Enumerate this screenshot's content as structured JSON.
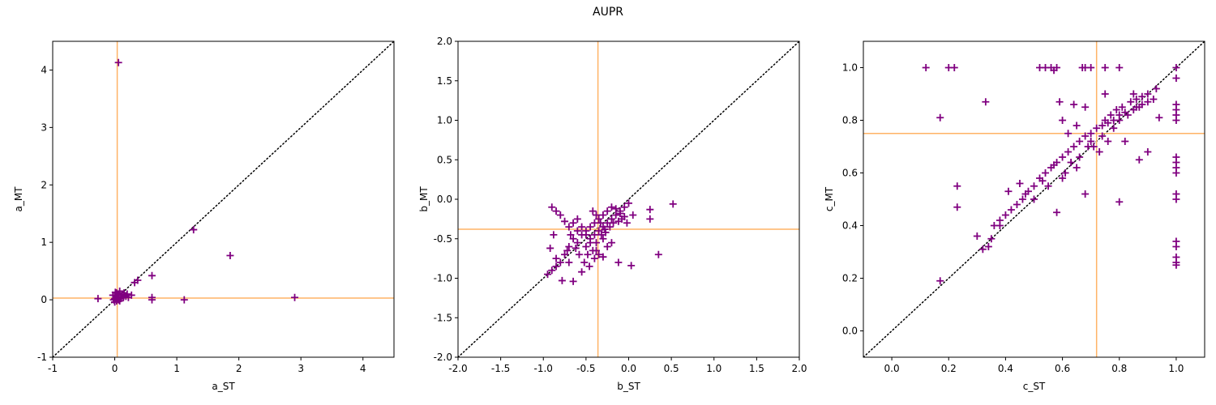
{
  "figure": {
    "title": "AUPR",
    "colors": {
      "marker": "#800080",
      "median_line": "#ffb366",
      "diagonal": "#000000"
    }
  },
  "chart_data": [
    {
      "type": "scatter",
      "title": "",
      "xlabel": "a_ST",
      "ylabel": "a_MT",
      "xlim": [
        -1,
        4.5
      ],
      "ylim": [
        -1,
        4.5
      ],
      "xticks": [
        -1,
        0,
        1,
        2,
        3,
        4
      ],
      "yticks": [
        -1,
        0,
        1,
        2,
        3,
        4
      ],
      "median_x": 0.04,
      "median_y": 0.03,
      "diagonal": true,
      "marker": "+",
      "points": [
        [
          0.06,
          4.13
        ],
        [
          1.27,
          1.22
        ],
        [
          1.86,
          0.77
        ],
        [
          2.9,
          0.04
        ],
        [
          1.12,
          0.0
        ],
        [
          0.6,
          0.42
        ],
        [
          0.6,
          0.04
        ],
        [
          0.6,
          0.0
        ],
        [
          0.37,
          0.34
        ],
        [
          0.32,
          0.3
        ],
        [
          -0.27,
          0.02
        ],
        [
          0.27,
          0.08
        ],
        [
          0.2,
          0.1
        ],
        [
          0.15,
          0.12
        ],
        [
          0.12,
          0.08
        ],
        [
          0.1,
          0.05
        ],
        [
          0.08,
          0.15
        ],
        [
          0.05,
          0.1
        ],
        [
          0.03,
          0.12
        ],
        [
          0.0,
          0.02
        ],
        [
          -0.02,
          0.0
        ],
        [
          0.0,
          -0.04
        ],
        [
          0.02,
          0.06
        ],
        [
          0.06,
          0.0
        ],
        [
          0.04,
          0.02
        ],
        [
          -0.03,
          0.08
        ],
        [
          0.1,
          0.02
        ],
        [
          0.14,
          0.04
        ],
        [
          0.08,
          -0.02
        ],
        [
          0.01,
          0.13
        ],
        [
          0.18,
          0.06
        ],
        [
          0.22,
          0.04
        ],
        [
          0.0,
          0.08
        ],
        [
          0.03,
          -0.02
        ],
        [
          0.06,
          0.09
        ]
      ]
    },
    {
      "type": "scatter",
      "title": "",
      "xlabel": "b_ST",
      "ylabel": "b_MT",
      "xlim": [
        -2,
        2
      ],
      "ylim": [
        -2,
        2
      ],
      "xticks": [
        -2.0,
        -1.5,
        -1.0,
        -0.5,
        0.0,
        0.5,
        1.0,
        1.5,
        2.0
      ],
      "yticks": [
        -2.0,
        -1.5,
        -1.0,
        -0.5,
        0.0,
        0.5,
        1.0,
        1.5,
        2.0
      ],
      "median_x": -0.36,
      "median_y": -0.38,
      "diagonal": true,
      "marker": "+",
      "points": [
        [
          0.52,
          -0.06
        ],
        [
          0.35,
          -0.7
        ],
        [
          0.25,
          -0.25
        ],
        [
          0.25,
          -0.13
        ],
        [
          0.03,
          -0.84
        ],
        [
          -0.12,
          -0.8
        ],
        [
          -0.2,
          -0.55
        ],
        [
          -0.25,
          -0.6
        ],
        [
          -0.3,
          -0.73
        ],
        [
          -0.38,
          -0.65
        ],
        [
          -0.45,
          -0.55
        ],
        [
          -0.5,
          -0.45
        ],
        [
          -0.55,
          -0.35
        ],
        [
          -0.6,
          -0.4
        ],
        [
          -0.65,
          -0.5
        ],
        [
          -0.7,
          -0.6
        ],
        [
          -0.75,
          -0.7
        ],
        [
          -0.8,
          -0.8
        ],
        [
          -0.85,
          -0.85
        ],
        [
          -0.9,
          -0.9
        ],
        [
          -0.95,
          -0.95
        ],
        [
          -0.78,
          -1.03
        ],
        [
          -0.65,
          -1.04
        ],
        [
          -0.55,
          -0.92
        ],
        [
          -0.9,
          -0.1
        ],
        [
          -0.85,
          -0.15
        ],
        [
          -0.8,
          -0.2
        ],
        [
          -0.75,
          -0.28
        ],
        [
          -0.7,
          -0.35
        ],
        [
          -0.65,
          -0.3
        ],
        [
          -0.58,
          -0.7
        ],
        [
          -0.5,
          -0.6
        ],
        [
          -0.45,
          -0.5
        ],
        [
          -0.4,
          -0.45
        ],
        [
          -0.35,
          -0.4
        ],
        [
          -0.3,
          -0.35
        ],
        [
          -0.25,
          -0.3
        ],
        [
          -0.2,
          -0.25
        ],
        [
          -0.15,
          -0.2
        ],
        [
          -0.1,
          -0.15
        ],
        [
          -0.05,
          -0.1
        ],
        [
          0.0,
          -0.05
        ],
        [
          -0.4,
          -0.3
        ],
        [
          -0.35,
          -0.25
        ],
        [
          -0.3,
          -0.2
        ],
        [
          -0.25,
          -0.15
        ],
        [
          -0.2,
          -0.1
        ],
        [
          -0.15,
          -0.12
        ],
        [
          -0.1,
          -0.18
        ],
        [
          -0.05,
          -0.22
        ],
        [
          -0.45,
          -0.35
        ],
        [
          -0.5,
          -0.4
        ],
        [
          -0.55,
          -0.45
        ],
        [
          -0.6,
          -0.55
        ],
        [
          -0.48,
          -0.7
        ],
        [
          -0.42,
          -0.65
        ],
        [
          -0.38,
          -0.55
        ],
        [
          -0.32,
          -0.45
        ],
        [
          -0.28,
          -0.38
        ],
        [
          -0.22,
          -0.35
        ],
        [
          -0.18,
          -0.3
        ],
        [
          -0.12,
          -0.28
        ],
        [
          -0.08,
          -0.25
        ],
        [
          -0.52,
          -0.8
        ],
        [
          -0.46,
          -0.85
        ],
        [
          -0.4,
          -0.75
        ],
        [
          -0.35,
          -0.7
        ],
        [
          -0.7,
          -0.8
        ],
        [
          -0.72,
          -0.65
        ],
        [
          -0.62,
          -0.62
        ],
        [
          -0.85,
          -0.75
        ],
        [
          -0.92,
          -0.62
        ],
        [
          -0.88,
          -0.45
        ],
        [
          -0.3,
          -0.5
        ],
        [
          -0.27,
          -0.42
        ],
        [
          -0.33,
          -0.3
        ],
        [
          -0.38,
          -0.2
        ],
        [
          -0.42,
          -0.15
        ],
        [
          -0.02,
          -0.3
        ],
        [
          0.05,
          -0.2
        ],
        [
          -0.6,
          -0.25
        ],
        [
          -0.68,
          -0.45
        ]
      ]
    },
    {
      "type": "scatter",
      "title": "",
      "xlabel": "c_ST",
      "ylabel": "c_MT",
      "xlim": [
        -0.1,
        1.1
      ],
      "ylim": [
        -0.1,
        1.1
      ],
      "xticks": [
        0.0,
        0.2,
        0.4,
        0.6,
        0.8,
        1.0
      ],
      "yticks": [
        0.0,
        0.2,
        0.4,
        0.6,
        0.8,
        1.0
      ],
      "median_x": 0.72,
      "median_y": 0.75,
      "diagonal": true,
      "marker": "+",
      "points": [
        [
          0.12,
          1.0
        ],
        [
          0.2,
          1.0
        ],
        [
          0.22,
          1.0
        ],
        [
          0.52,
          1.0
        ],
        [
          0.54,
          1.0
        ],
        [
          0.56,
          1.0
        ],
        [
          0.58,
          1.0
        ],
        [
          0.67,
          1.0
        ],
        [
          0.68,
          1.0
        ],
        [
          0.7,
          1.0
        ],
        [
          0.75,
          1.0
        ],
        [
          0.8,
          1.0
        ],
        [
          1.0,
          1.0
        ],
        [
          0.57,
          0.99
        ],
        [
          1.0,
          0.96
        ],
        [
          0.93,
          0.92
        ],
        [
          0.85,
          0.9
        ],
        [
          0.75,
          0.9
        ],
        [
          0.92,
          0.88
        ],
        [
          0.9,
          0.87
        ],
        [
          0.88,
          0.86
        ],
        [
          0.87,
          0.85
        ],
        [
          0.85,
          0.84
        ],
        [
          0.82,
          0.83
        ],
        [
          0.8,
          0.82
        ],
        [
          0.78,
          0.8
        ],
        [
          0.76,
          0.79
        ],
        [
          0.74,
          0.78
        ],
        [
          0.72,
          0.77
        ],
        [
          0.7,
          0.75
        ],
        [
          0.68,
          0.74
        ],
        [
          0.66,
          0.72
        ],
        [
          0.64,
          0.7
        ],
        [
          0.62,
          0.68
        ],
        [
          0.6,
          0.66
        ],
        [
          0.58,
          0.64
        ],
        [
          0.56,
          0.62
        ],
        [
          0.54,
          0.6
        ],
        [
          0.52,
          0.58
        ],
        [
          0.5,
          0.55
        ],
        [
          0.48,
          0.53
        ],
        [
          0.46,
          0.5
        ],
        [
          0.44,
          0.48
        ],
        [
          0.42,
          0.46
        ],
        [
          0.4,
          0.44
        ],
        [
          0.38,
          0.42
        ],
        [
          0.36,
          0.4
        ],
        [
          0.17,
          0.81
        ],
        [
          0.33,
          0.87
        ],
        [
          0.59,
          0.87
        ],
        [
          0.64,
          0.86
        ],
        [
          0.68,
          0.85
        ],
        [
          0.6,
          0.8
        ],
        [
          0.65,
          0.78
        ],
        [
          0.62,
          0.75
        ],
        [
          1.0,
          0.86
        ],
        [
          1.0,
          0.84
        ],
        [
          1.0,
          0.82
        ],
        [
          1.0,
          0.8
        ],
        [
          0.94,
          0.81
        ],
        [
          0.82,
          0.72
        ],
        [
          0.9,
          0.68
        ],
        [
          0.87,
          0.65
        ],
        [
          1.0,
          0.66
        ],
        [
          1.0,
          0.64
        ],
        [
          1.0,
          0.62
        ],
        [
          1.0,
          0.6
        ],
        [
          0.58,
          0.45
        ],
        [
          0.68,
          0.52
        ],
        [
          0.8,
          0.49
        ],
        [
          1.0,
          0.52
        ],
        [
          1.0,
          0.5
        ],
        [
          1.0,
          0.34
        ],
        [
          1.0,
          0.32
        ],
        [
          1.0,
          0.28
        ],
        [
          1.0,
          0.26
        ],
        [
          1.0,
          0.25
        ],
        [
          0.23,
          0.55
        ],
        [
          0.23,
          0.47
        ],
        [
          0.17,
          0.19
        ],
        [
          0.3,
          0.36
        ],
        [
          0.32,
          0.31
        ],
        [
          0.34,
          0.32
        ],
        [
          0.35,
          0.35
        ],
        [
          0.38,
          0.4
        ],
        [
          0.41,
          0.53
        ],
        [
          0.45,
          0.56
        ],
        [
          0.5,
          0.5
        ],
        [
          0.55,
          0.55
        ],
        [
          0.6,
          0.58
        ],
        [
          0.63,
          0.64
        ],
        [
          0.66,
          0.66
        ],
        [
          0.7,
          0.72
        ],
        [
          0.74,
          0.74
        ],
        [
          0.78,
          0.77
        ],
        [
          0.8,
          0.8
        ],
        [
          0.83,
          0.82
        ],
        [
          0.86,
          0.85
        ],
        [
          0.88,
          0.89
        ],
        [
          0.9,
          0.9
        ],
        [
          0.76,
          0.72
        ],
        [
          0.73,
          0.68
        ],
        [
          0.69,
          0.7
        ],
        [
          0.57,
          0.63
        ],
        [
          0.53,
          0.57
        ],
        [
          0.47,
          0.52
        ],
        [
          0.61,
          0.6
        ],
        [
          0.65,
          0.62
        ],
        [
          0.71,
          0.7
        ],
        [
          0.79,
          0.84
        ],
        [
          0.81,
          0.85
        ],
        [
          0.84,
          0.87
        ],
        [
          0.86,
          0.88
        ],
        [
          0.77,
          0.82
        ],
        [
          0.75,
          0.8
        ]
      ]
    }
  ]
}
